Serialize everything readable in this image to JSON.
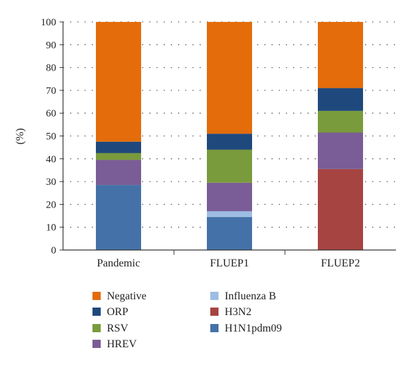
{
  "chart_data": {
    "type": "bar",
    "stacked": true,
    "ylabel": "(%)",
    "ylim": [
      0,
      100
    ],
    "yticks": [
      0,
      10,
      20,
      30,
      40,
      50,
      60,
      70,
      80,
      90,
      100
    ],
    "grid": "dotted-horizontal",
    "legend_position": "bottom",
    "categories": [
      "Pandemic",
      "FLUEP1",
      "FLUEP2"
    ],
    "series": [
      {
        "name": "H1N1pdm09",
        "color": "#4472a8",
        "values": [
          28.5,
          14.5,
          0
        ]
      },
      {
        "name": "Influenza B",
        "color": "#9dbde3",
        "values": [
          0,
          2.5,
          0
        ]
      },
      {
        "name": "H3N2",
        "color": "#a64442",
        "values": [
          0,
          0,
          35.5
        ]
      },
      {
        "name": "HREV",
        "color": "#7a5d96",
        "values": [
          11,
          12.5,
          16
        ]
      },
      {
        "name": "RSV",
        "color": "#799b3c",
        "values": [
          3,
          14.5,
          9.5
        ]
      },
      {
        "name": "ORP",
        "color": "#1f497d",
        "values": [
          5,
          7,
          10
        ]
      },
      {
        "name": "Negative",
        "color": "#e46c0a",
        "values": [
          52.5,
          49,
          29
        ]
      }
    ],
    "legend_order": [
      [
        "Negative",
        "ORP",
        "RSV",
        "HREV"
      ],
      [
        "Influenza B",
        "H3N2",
        "H1N1pdm09"
      ]
    ]
  }
}
